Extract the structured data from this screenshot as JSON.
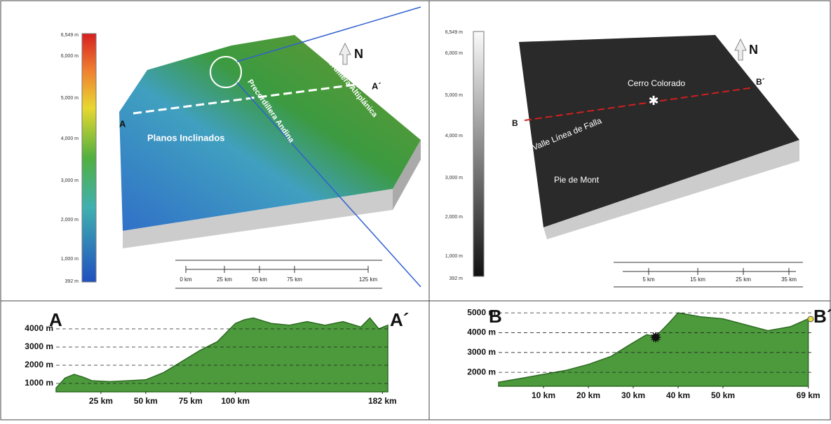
{
  "map_left": {
    "colorbar_labels": [
      "6,549 m",
      "6,000 m",
      "5,000 m",
      "4,000 m",
      "3,000 m",
      "2,000 m",
      "1,000 m",
      "392 m"
    ],
    "section_start": "A",
    "section_end": "A´",
    "north": "N",
    "regions": [
      "Planos Inclinados",
      "Precordillera Andina",
      "Precordillera Altiplánica"
    ],
    "scale_labels": [
      "0 km",
      "25 km",
      "50 km",
      "75 km",
      "125 km"
    ]
  },
  "map_right": {
    "colorbar_labels": [
      "6,549 m",
      "6,000 m",
      "5,000 m",
      "4,000 m",
      "3,000 m",
      "2,000 m",
      "1,000 m",
      "392 m"
    ],
    "section_start": "B",
    "section_end": "B´",
    "north": "N",
    "regions": [
      "Cerro Colorado",
      "Valle Línea de Falla",
      "Pie de Mont"
    ],
    "scale_labels": [
      "5 km",
      "15 km",
      "25 km",
      "35 km"
    ]
  },
  "profile_left": {
    "start": "A",
    "end": "A´",
    "x": [
      0,
      5,
      10,
      15,
      20,
      30,
      40,
      50,
      60,
      70,
      80,
      90,
      95,
      100,
      105,
      110,
      120,
      130,
      140,
      150,
      160,
      170,
      175,
      180,
      185
    ],
    "values": [
      750,
      1300,
      1500,
      1350,
      1150,
      1100,
      1150,
      1200,
      1600,
      2200,
      2800,
      3300,
      3800,
      4300,
      4500,
      4600,
      4300,
      4200,
      4400,
      4200,
      4400,
      4100,
      4600,
      4000,
      4200
    ],
    "xlim": [
      0,
      185
    ],
    "ylim": [
      540,
      4960
    ],
    "xticks": [
      {
        "value": 25,
        "label": "25 km"
      },
      {
        "value": 50,
        "label": "50 km"
      },
      {
        "value": 75,
        "label": "75 km"
      },
      {
        "value": 100,
        "label": "100 km"
      },
      {
        "value": 182,
        "label": "182 km"
      }
    ],
    "yticks": [
      {
        "value": 1000,
        "label": "1000 m"
      },
      {
        "value": 2000,
        "label": "2000 m"
      },
      {
        "value": 3000,
        "label": "3000 m"
      },
      {
        "value": 4000,
        "label": "4000 m"
      }
    ]
  },
  "profile_right": {
    "start": "B",
    "end": "B´",
    "x": [
      0,
      5,
      10,
      15,
      20,
      25,
      30,
      33,
      35,
      38,
      40,
      45,
      50,
      55,
      60,
      65,
      69
    ],
    "values": [
      1500,
      1700,
      1900,
      2100,
      2400,
      2800,
      3500,
      3900,
      3800,
      4500,
      5000,
      4800,
      4700,
      4400,
      4100,
      4300,
      4700
    ],
    "xlim": [
      0,
      70
    ],
    "ylim": [
      1300,
      5250
    ],
    "xticks": [
      {
        "value": 10,
        "label": "10 km"
      },
      {
        "value": 20,
        "label": "20 km"
      },
      {
        "value": 30,
        "label": "30 km"
      },
      {
        "value": 40,
        "label": "40 km"
      },
      {
        "value": 50,
        "label": "50 km"
      },
      {
        "value": 69,
        "label": "69 km"
      }
    ],
    "yticks": [
      {
        "value": 2000,
        "label": "2000 m"
      },
      {
        "value": 3000,
        "label": "3000 m"
      },
      {
        "value": 4000,
        "label": "4000 m"
      },
      {
        "value": 5000,
        "label": "5000 m"
      }
    ]
  }
}
